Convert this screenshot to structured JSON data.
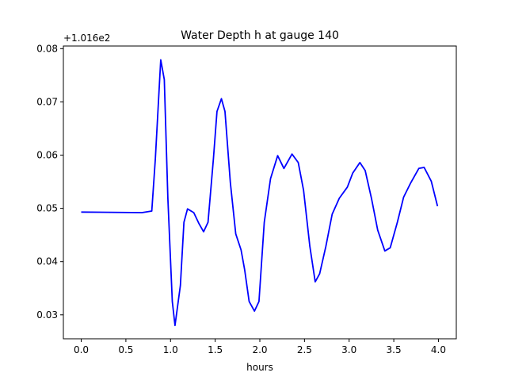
{
  "chart_data": {
    "type": "line",
    "title": "Water Depth h at gauge 140",
    "xlabel": "hours",
    "ylabel": "",
    "y_offset_label": "+1.016e2",
    "xlim": [
      -0.2,
      4.2
    ],
    "ylim": [
      0.0255,
      0.0805
    ],
    "xticks": [
      0.0,
      0.5,
      1.0,
      1.5,
      2.0,
      2.5,
      3.0,
      3.5,
      4.0
    ],
    "xtick_labels": [
      "0.0",
      "0.5",
      "1.0",
      "1.5",
      "2.0",
      "2.5",
      "3.0",
      "3.5",
      "4.0"
    ],
    "yticks": [
      0.03,
      0.04,
      0.05,
      0.06,
      0.07,
      0.08
    ],
    "ytick_labels": [
      "0.03",
      "0.04",
      "0.05",
      "0.06",
      "0.07",
      "0.08"
    ],
    "grid": false,
    "series": [
      {
        "name": "h",
        "color": "#0000ff",
        "x": [
          0,
          0.68,
          0.79,
          0.83,
          0.89,
          0.93,
          0.97,
          1.02,
          1.05,
          1.11,
          1.15,
          1.19,
          1.26,
          1.32,
          1.37,
          1.42,
          1.48,
          1.52,
          1.57,
          1.61,
          1.67,
          1.73,
          1.79,
          1.83,
          1.88,
          1.94,
          1.99,
          2.05,
          2.12,
          2.2,
          2.27,
          2.36,
          2.43,
          2.49,
          2.56,
          2.62,
          2.67,
          2.74,
          2.81,
          2.89,
          2.98,
          3.04,
          3.12,
          3.18,
          3.25,
          3.32,
          3.4,
          3.46,
          3.54,
          3.61,
          3.69,
          3.78,
          3.84,
          3.92,
          3.99
        ],
        "y": [
          0.0493,
          0.0492,
          0.0495,
          0.0593,
          0.0779,
          0.0742,
          0.0519,
          0.0325,
          0.028,
          0.0355,
          0.0474,
          0.0499,
          0.0492,
          0.0471,
          0.0456,
          0.0474,
          0.0593,
          0.0682,
          0.0706,
          0.0682,
          0.0548,
          0.0452,
          0.0422,
          0.0385,
          0.0325,
          0.0307,
          0.0325,
          0.0474,
          0.0556,
          0.0599,
          0.0575,
          0.0602,
          0.0586,
          0.0534,
          0.0429,
          0.0362,
          0.0377,
          0.0429,
          0.0489,
          0.0519,
          0.054,
          0.0566,
          0.0586,
          0.0571,
          0.0519,
          0.0459,
          0.042,
          0.0426,
          0.0474,
          0.0521,
          0.0548,
          0.0575,
          0.0577,
          0.0551,
          0.0504
        ]
      }
    ]
  }
}
